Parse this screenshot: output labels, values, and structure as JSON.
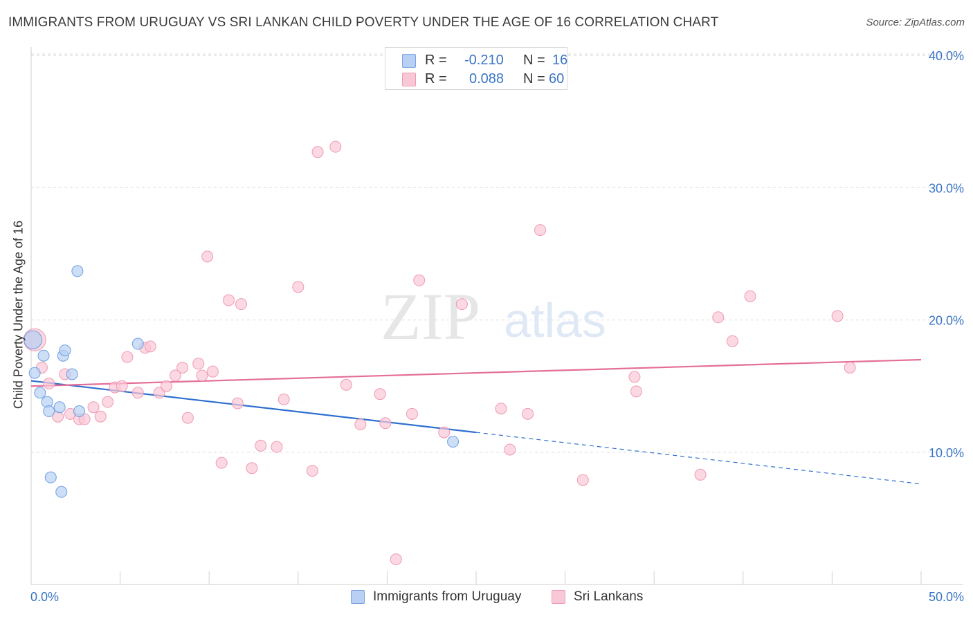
{
  "title": "IMMIGRANTS FROM URUGUAY VS SRI LANKAN CHILD POVERTY UNDER THE AGE OF 16 CORRELATION CHART",
  "source": "Source: ZipAtlas.com",
  "watermark": {
    "zip": "ZIP",
    "atlas": "atlas"
  },
  "legend": {
    "r_label": "R =",
    "n_label": "N =",
    "rows": [
      {
        "r": "-0.210",
        "n": "16",
        "swatch_fill": "#b8d0f4",
        "swatch_stroke": "#7aa3dd"
      },
      {
        "r": "0.088",
        "n": "60",
        "swatch_fill": "#f9c8d6",
        "swatch_stroke": "#ef9ab4"
      }
    ]
  },
  "bottom_legend": [
    "Immigrants from Uruguay",
    "Sri Lankans"
  ],
  "colors": {
    "blue_fill": "#b8d0f4",
    "blue_stroke": "#6f9fe0",
    "blue_line": "#2e6fd0",
    "pink_fill": "#f9c8d6",
    "pink_stroke": "#ee9bb4",
    "pink_line": "#e46e98",
    "axis_text": "#3a75c4",
    "grid": "#dcdcdc"
  },
  "chart_data": {
    "type": "scatter",
    "title": "IMMIGRANTS FROM URUGUAY VS SRI LANKAN CHILD POVERTY UNDER THE AGE OF 16 CORRELATION CHART",
    "xlabel": "",
    "ylabel": "Child Poverty Under the Age of 16",
    "xlim": [
      0,
      50
    ],
    "ylim": [
      0,
      42
    ],
    "x_tick_labels": [
      "0.0%",
      "50.0%"
    ],
    "y_ticks": [
      10,
      20,
      30,
      40
    ],
    "y_tick_labels": [
      "10.0%",
      "20.0%",
      "30.0%",
      "40.0%"
    ],
    "grid": true,
    "series": [
      {
        "name": "Immigrants from Uruguay",
        "points": [
          [
            0.1,
            18.5
          ],
          [
            0.2,
            16.0
          ],
          [
            0.5,
            14.5
          ],
          [
            0.7,
            17.3
          ],
          [
            0.9,
            13.8
          ],
          [
            1.0,
            13.1
          ],
          [
            1.1,
            8.1
          ],
          [
            1.6,
            13.4
          ],
          [
            1.7,
            7.0
          ],
          [
            1.8,
            17.3
          ],
          [
            1.9,
            17.7
          ],
          [
            2.3,
            15.9
          ],
          [
            2.6,
            23.7
          ],
          [
            2.7,
            13.1
          ],
          [
            6.0,
            18.2
          ],
          [
            23.7,
            10.8
          ]
        ],
        "trend": {
          "x0": 0,
          "y0": 15.4,
          "x1": 25,
          "y1": 11.5,
          "dash_to_x": 50,
          "dash_to_y": 7.6
        }
      },
      {
        "name": "Sri Lankans",
        "points": [
          [
            0.2,
            18.5
          ],
          [
            0.6,
            16.4
          ],
          [
            1.0,
            15.2
          ],
          [
            1.5,
            12.7
          ],
          [
            1.9,
            15.9
          ],
          [
            2.2,
            12.9
          ],
          [
            2.7,
            12.5
          ],
          [
            3.0,
            12.5
          ],
          [
            3.5,
            13.4
          ],
          [
            3.9,
            12.7
          ],
          [
            4.3,
            13.8
          ],
          [
            4.7,
            14.9
          ],
          [
            5.1,
            15.0
          ],
          [
            5.4,
            17.2
          ],
          [
            6.0,
            14.5
          ],
          [
            6.4,
            17.9
          ],
          [
            6.7,
            18.0
          ],
          [
            7.2,
            14.5
          ],
          [
            7.6,
            15.0
          ],
          [
            8.1,
            15.8
          ],
          [
            8.5,
            16.4
          ],
          [
            8.8,
            12.6
          ],
          [
            9.4,
            16.7
          ],
          [
            9.6,
            15.8
          ],
          [
            10.2,
            16.1
          ],
          [
            9.9,
            24.8
          ],
          [
            10.7,
            9.2
          ],
          [
            11.1,
            21.5
          ],
          [
            11.6,
            13.7
          ],
          [
            11.8,
            21.2
          ],
          [
            12.4,
            8.8
          ],
          [
            12.9,
            10.5
          ],
          [
            13.8,
            10.4
          ],
          [
            14.2,
            14.0
          ],
          [
            15.0,
            22.5
          ],
          [
            15.8,
            8.6
          ],
          [
            16.1,
            32.7
          ],
          [
            17.1,
            33.1
          ],
          [
            17.7,
            15.1
          ],
          [
            18.5,
            12.1
          ],
          [
            19.6,
            14.4
          ],
          [
            19.9,
            12.2
          ],
          [
            20.5,
            1.9
          ],
          [
            21.4,
            12.9
          ],
          [
            21.8,
            23.0
          ],
          [
            23.2,
            11.5
          ],
          [
            24.2,
            21.2
          ],
          [
            26.4,
            13.3
          ],
          [
            26.9,
            10.2
          ],
          [
            27.9,
            12.9
          ],
          [
            28.6,
            26.8
          ],
          [
            31.0,
            7.9
          ],
          [
            33.9,
            15.7
          ],
          [
            34.0,
            14.6
          ],
          [
            37.6,
            8.3
          ],
          [
            38.6,
            20.2
          ],
          [
            39.4,
            18.4
          ],
          [
            40.4,
            21.8
          ],
          [
            45.3,
            20.3
          ],
          [
            46.0,
            16.4
          ]
        ],
        "trend": {
          "x0": 0,
          "y0": 15.0,
          "x1": 50,
          "y1": 17.0
        }
      }
    ]
  }
}
